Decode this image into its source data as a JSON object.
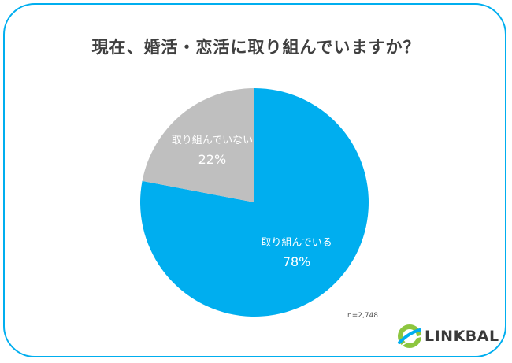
{
  "title": "現在、婚活・恋活に取り組んでいますか？",
  "sample_size": "n=2,748",
  "brand": {
    "name": "LINKBAL",
    "color_primary": "#00aeef",
    "color_secondary": "#8dc63f"
  },
  "chart_data": {
    "type": "pie",
    "title": "現在、婚活・恋活に取り組んでいますか？",
    "slices": [
      {
        "label": "取り組んでいる",
        "value": 78,
        "value_label": "78%",
        "color": "#00aeef"
      },
      {
        "label": "取り組んでいない",
        "value": 22,
        "value_label": "22%",
        "color": "#bfbfbf"
      }
    ],
    "start": "12 o'clock",
    "direction": "clockwise"
  }
}
